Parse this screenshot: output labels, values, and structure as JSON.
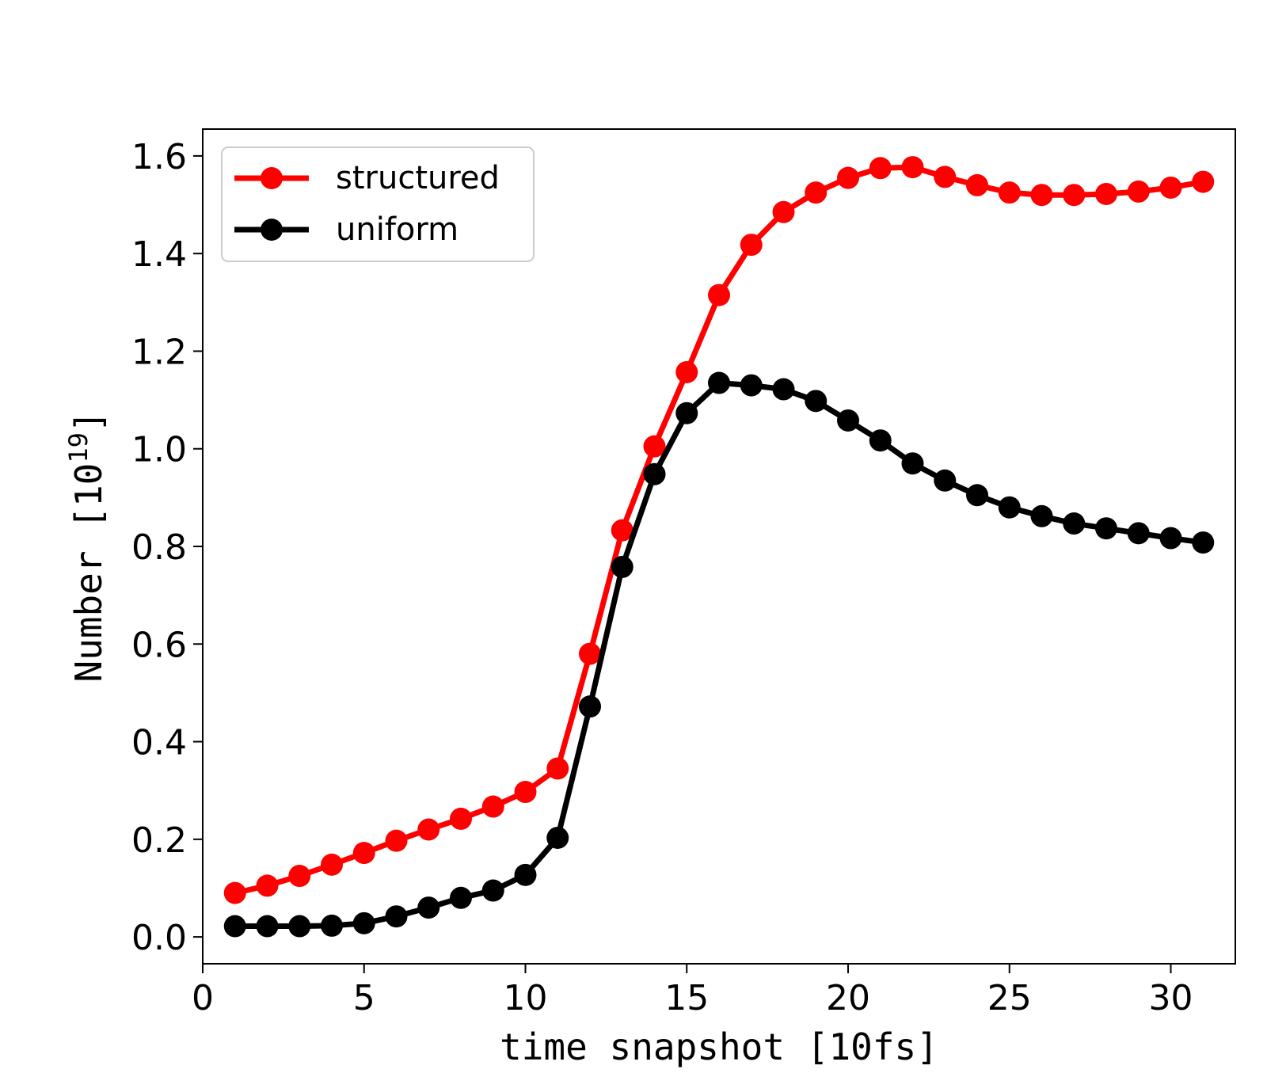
{
  "chart_data": {
    "type": "line",
    "title": "",
    "xlabel": "time snapshot [10fs]",
    "ylabel_base": "Number [10",
    "ylabel_exp": "19",
    "ylabel_end": "]",
    "xlim": [
      0,
      32
    ],
    "ylim": [
      -0.055,
      1.655
    ],
    "xticks": [
      0,
      5,
      10,
      15,
      20,
      25,
      30
    ],
    "xtick_labels": [
      "0",
      "5",
      "10",
      "15",
      "20",
      "25",
      "30"
    ],
    "yticks": [
      0.0,
      0.2,
      0.4,
      0.6,
      0.8,
      1.0,
      1.2,
      1.4,
      1.6
    ],
    "ytick_labels": [
      "0.0",
      "0.2",
      "0.4",
      "0.6",
      "0.8",
      "1.0",
      "1.2",
      "1.4",
      "1.6"
    ],
    "grid": false,
    "legend_position": "top-left",
    "x": [
      1,
      2,
      3,
      4,
      5,
      6,
      7,
      8,
      9,
      10,
      11,
      12,
      13,
      14,
      15,
      16,
      17,
      18,
      19,
      20,
      21,
      22,
      23,
      24,
      25,
      26,
      27,
      28,
      29,
      30,
      31
    ],
    "series": [
      {
        "name": "structured",
        "color": "#ff0000",
        "values": [
          0.09,
          0.105,
          0.125,
          0.148,
          0.172,
          0.197,
          0.22,
          0.242,
          0.267,
          0.297,
          0.345,
          0.58,
          0.833,
          1.005,
          1.157,
          1.315,
          1.418,
          1.485,
          1.525,
          1.555,
          1.575,
          1.577,
          1.557,
          1.54,
          1.525,
          1.52,
          1.52,
          1.522,
          1.527,
          1.535,
          1.547
        ]
      },
      {
        "name": "uniform",
        "color": "#000000",
        "values": [
          0.022,
          0.022,
          0.022,
          0.023,
          0.028,
          0.042,
          0.06,
          0.08,
          0.095,
          0.127,
          0.203,
          0.472,
          0.758,
          0.948,
          1.073,
          1.135,
          1.13,
          1.122,
          1.098,
          1.058,
          1.017,
          0.97,
          0.935,
          0.905,
          0.88,
          0.862,
          0.847,
          0.837,
          0.827,
          0.817,
          0.808
        ]
      }
    ]
  }
}
